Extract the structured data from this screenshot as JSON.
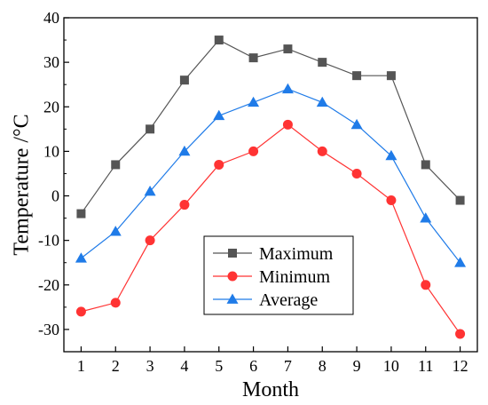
{
  "chart_data": {
    "type": "line",
    "xlabel": "Month",
    "ylabel": "Temperature /°C",
    "x": [
      1,
      2,
      3,
      4,
      5,
      6,
      7,
      8,
      9,
      10,
      11,
      12
    ],
    "xlim": [
      0.5,
      12.5
    ],
    "ylim": [
      -35,
      40
    ],
    "yticks": [
      -30,
      -20,
      -10,
      0,
      10,
      20,
      30,
      40
    ],
    "legend_position": "bottom-center",
    "grid": false,
    "series": [
      {
        "name": "Maximum",
        "color": "#555555",
        "marker": "square",
        "values": [
          -4,
          7,
          15,
          26,
          35,
          31,
          33,
          30,
          27,
          27,
          7,
          -1
        ]
      },
      {
        "name": "Minimum",
        "color": "#ff3333",
        "marker": "circle",
        "values": [
          -26,
          -24,
          -10,
          -2,
          7,
          10,
          16,
          10,
          5,
          -1,
          -20,
          -31
        ]
      },
      {
        "name": "Average",
        "color": "#1f7be8",
        "marker": "triangle",
        "values": [
          -14,
          -8,
          1,
          10,
          18,
          21,
          24,
          21,
          16,
          9,
          -5,
          -15
        ]
      }
    ]
  }
}
